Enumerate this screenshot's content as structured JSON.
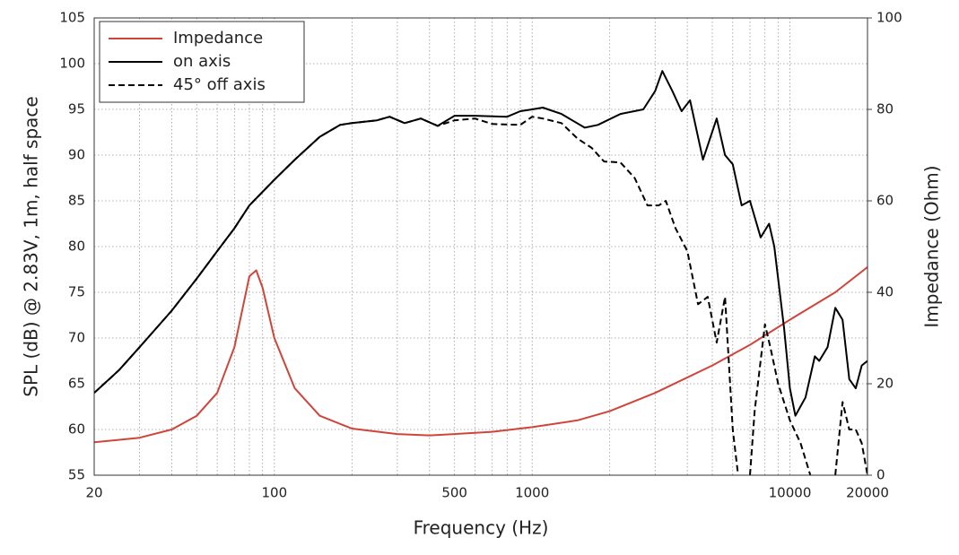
{
  "chart_data": {
    "type": "line",
    "xlabel": "Frequency (Hz)",
    "ylabel": "SPL (dB) @ 2.83V, 1m, half space",
    "y2label": "Impedance (Ohm)",
    "xscale": "log",
    "xlim": [
      20,
      20000
    ],
    "xticks": [
      20,
      100,
      500,
      1000,
      10000,
      20000
    ],
    "xminor_ticks": [
      30,
      40,
      50,
      60,
      70,
      80,
      90,
      200,
      300,
      400,
      600,
      700,
      800,
      900,
      2000,
      3000,
      4000,
      5000,
      6000,
      7000,
      8000,
      9000
    ],
    "ylim": [
      55,
      105
    ],
    "yticks": [
      55,
      60,
      65,
      70,
      75,
      80,
      85,
      90,
      95,
      100,
      105
    ],
    "y2lim": [
      0,
      100
    ],
    "y2ticks": [
      0,
      20,
      40,
      60,
      80,
      100
    ],
    "grid": true,
    "legend": "upper left",
    "series": [
      {
        "name": "Impedance",
        "color": "#d0453a",
        "axis": "y2",
        "dash": false,
        "x": [
          20,
          30,
          40,
          50,
          60,
          70,
          80,
          85,
          90,
          100,
          120,
          150,
          200,
          300,
          400,
          500,
          700,
          1000,
          1500,
          2000,
          3000,
          5000,
          7000,
          10000,
          15000,
          20000
        ],
        "values": [
          7.2,
          8.2,
          10,
          13,
          18,
          28,
          43.5,
          44.8,
          41,
          30,
          19,
          13,
          10.2,
          9,
          8.7,
          9,
          9.5,
          10.5,
          12,
          14,
          18,
          24,
          28.5,
          34,
          40,
          45.5
        ]
      },
      {
        "name": "on axis",
        "color": "#000000",
        "axis": "y",
        "dash": false,
        "x": [
          20,
          25,
          30,
          40,
          50,
          60,
          70,
          80,
          100,
          120,
          150,
          180,
          200,
          250,
          280,
          320,
          370,
          430,
          500,
          600,
          800,
          900,
          1000,
          1100,
          1300,
          1600,
          1800,
          2200,
          2700,
          3000,
          3200,
          3500,
          3800,
          4100,
          4600,
          5200,
          5600,
          6000,
          6500,
          7000,
          7700,
          8300,
          8700,
          9500,
          10000,
          10500,
          11500,
          12500,
          13000,
          14000,
          15000,
          16000,
          17000,
          18000,
          19000,
          20000
        ],
        "values": [
          64,
          66.5,
          69,
          73,
          76.5,
          79.5,
          82,
          84.5,
          87.3,
          89.5,
          92,
          93.3,
          93.5,
          93.8,
          94.2,
          93.5,
          94,
          93.2,
          94.3,
          94.3,
          94.2,
          94.8,
          95,
          95.2,
          94.5,
          93,
          93.3,
          94.5,
          95,
          97,
          99.2,
          97,
          94.8,
          96,
          89.5,
          94,
          90,
          89,
          84.5,
          85,
          81,
          82.5,
          80,
          71,
          64.5,
          61.5,
          63.5,
          68,
          67.5,
          69,
          73.3,
          72,
          65.5,
          64.5,
          67,
          67.5
        ]
      },
      {
        "name": "45° off axis",
        "color": "#000000",
        "axis": "y",
        "dash": true,
        "x": [
          20,
          25,
          30,
          40,
          50,
          60,
          70,
          80,
          100,
          120,
          150,
          180,
          200,
          250,
          280,
          320,
          370,
          430,
          500,
          600,
          700,
          900,
          1000,
          1100,
          1300,
          1500,
          1700,
          1900,
          2200,
          2500,
          2800,
          3100,
          3300,
          3600,
          4000,
          4400,
          4800,
          5200,
          5600,
          6000,
          6300,
          6600,
          7000,
          7300,
          8000,
          8400,
          9000,
          10000,
          11000,
          12000,
          13500,
          15000,
          16000,
          17000,
          18000,
          19000,
          20000
        ],
        "values": [
          64,
          66.5,
          69,
          73,
          76.5,
          79.5,
          82,
          84.5,
          87.3,
          89.5,
          92,
          93.3,
          93.5,
          93.8,
          94.2,
          93.5,
          94,
          93.2,
          93.8,
          94,
          93.4,
          93.3,
          94.2,
          94,
          93.5,
          91.8,
          90.8,
          89.3,
          89.2,
          87.5,
          84.5,
          84.5,
          85,
          82,
          79.5,
          73.7,
          74.5,
          69.5,
          74.5,
          60,
          55,
          null,
          55,
          62,
          71.5,
          69,
          65,
          61,
          58.5,
          55,
          null,
          55,
          63,
          60,
          60,
          58.5,
          55
        ]
      }
    ]
  }
}
